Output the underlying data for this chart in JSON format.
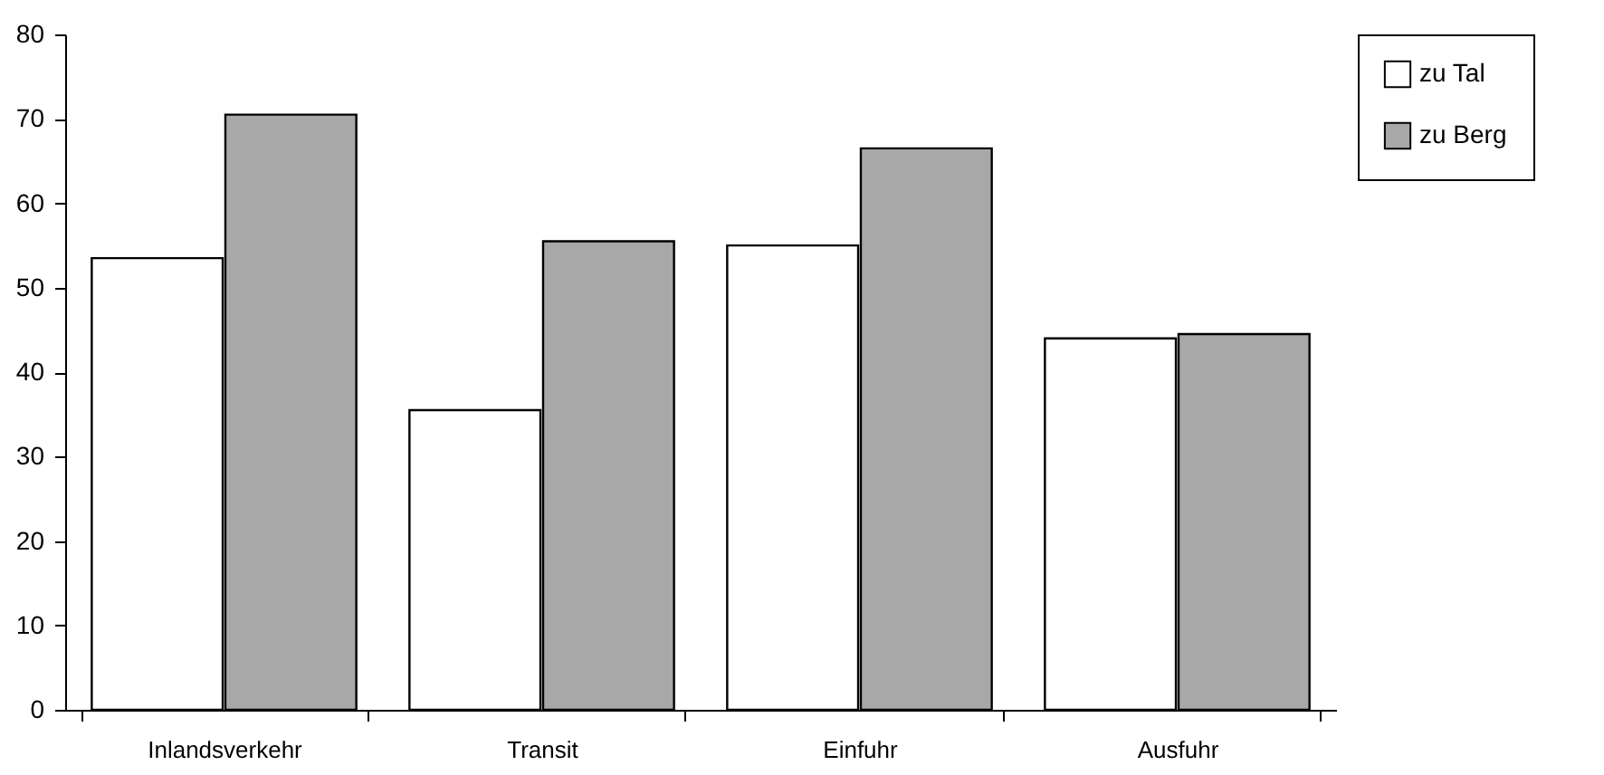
{
  "chart_data": {
    "type": "bar",
    "categories": [
      "Inlandsverkehr",
      "Transit",
      "Einfuhr",
      "Ausfuhr"
    ],
    "series": [
      {
        "name": "zu Tal",
        "color": "#ffffff",
        "values": [
          53.5,
          35.5,
          55,
          44
        ]
      },
      {
        "name": "zu Berg",
        "color": "#a8a8a8",
        "values": [
          70.5,
          55.5,
          66.5,
          44.5
        ]
      }
    ],
    "ylim": [
      0,
      80
    ],
    "yticks": [
      0,
      10,
      20,
      30,
      40,
      50,
      60,
      70,
      80
    ],
    "grid": false,
    "legend": "right"
  }
}
